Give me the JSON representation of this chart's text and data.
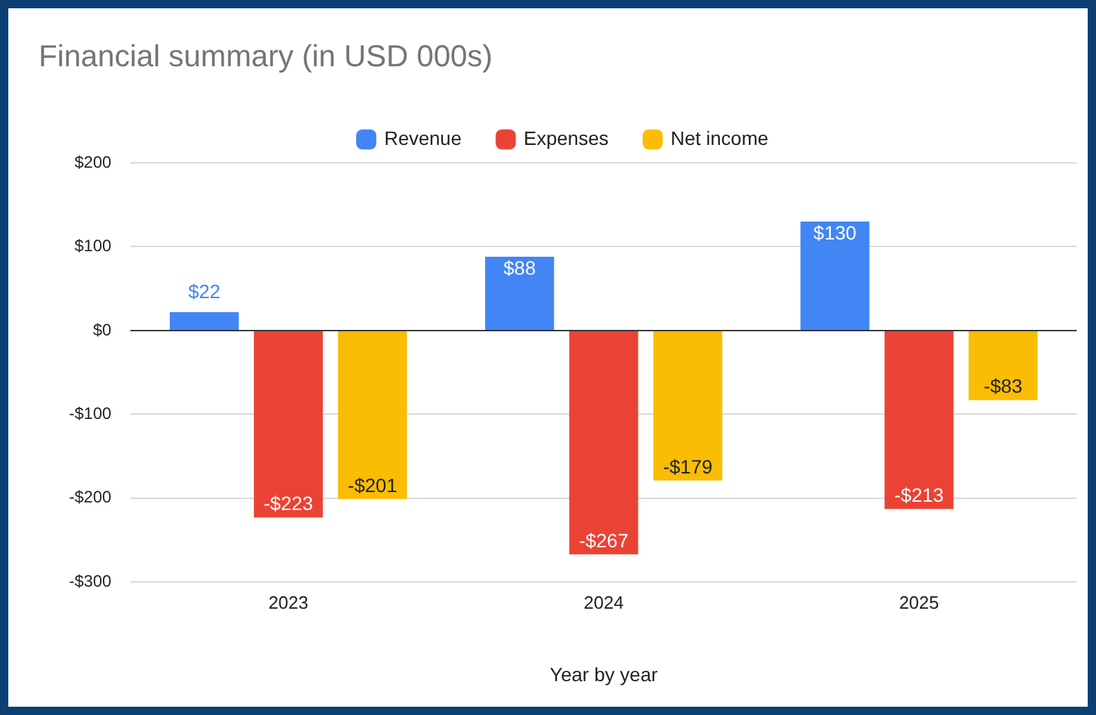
{
  "chart_data": {
    "type": "bar",
    "title": "Financial summary (in USD 000s)",
    "xlabel": "Year by year",
    "categories": [
      "2023",
      "2024",
      "2025"
    ],
    "series": [
      {
        "name": "Revenue",
        "color": "#4285f4",
        "values": [
          22,
          88,
          130
        ],
        "value_labels": [
          "$22",
          "$88",
          "$130"
        ]
      },
      {
        "name": "Expenses",
        "color": "#ea4335",
        "values": [
          -223,
          -267,
          -213
        ],
        "value_labels": [
          "-$223",
          "-$267",
          "-$213"
        ]
      },
      {
        "name": "Net income",
        "color": "#fbbc04",
        "values": [
          -201,
          -179,
          -83
        ],
        "value_labels": [
          "-$201",
          "-$179",
          "-$83"
        ]
      }
    ],
    "ylim": [
      -300,
      200
    ],
    "yticks": [
      {
        "value": -300,
        "label": "-$300"
      },
      {
        "value": -200,
        "label": "-$200"
      },
      {
        "value": -100,
        "label": "-$100"
      },
      {
        "value": 0,
        "label": "$0"
      },
      {
        "value": 100,
        "label": "$100"
      },
      {
        "value": 200,
        "label": "$200"
      }
    ],
    "grid": "y",
    "legend": "top"
  }
}
